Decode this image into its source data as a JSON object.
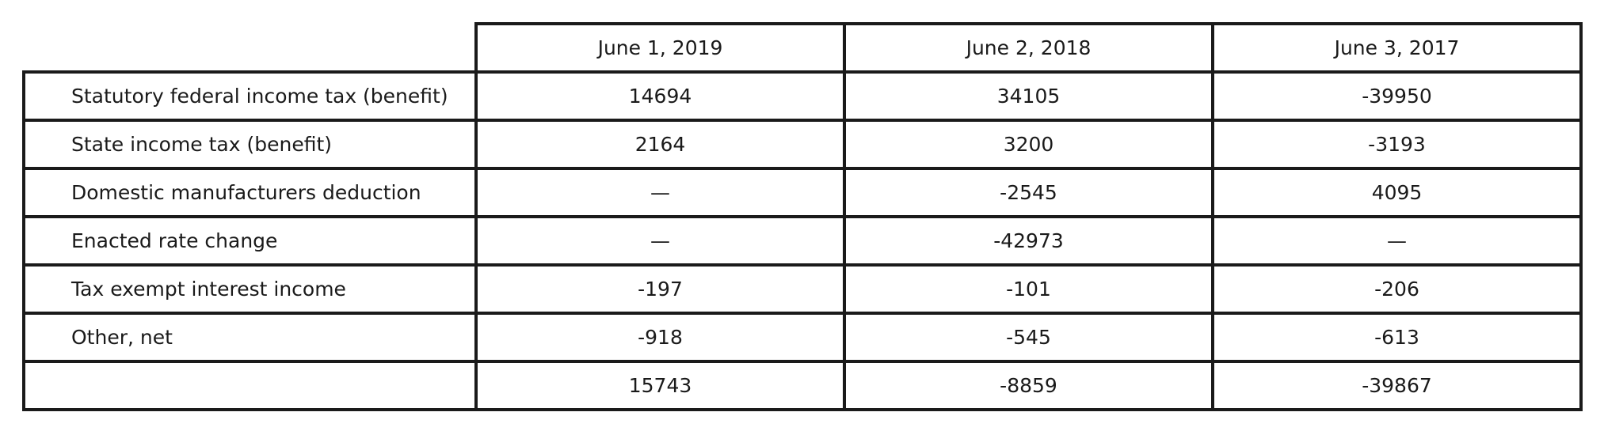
{
  "table": {
    "headers": [
      "June 1, 2019",
      "June 2, 2018",
      "June 3, 2017"
    ],
    "rows": [
      {
        "label": "Statutory federal income tax (benefit)",
        "values": [
          "14694",
          "34105",
          "-39950"
        ]
      },
      {
        "label": "State income tax (benefit)",
        "values": [
          "2164",
          "3200",
          "-3193"
        ]
      },
      {
        "label": "Domestic manufacturers deduction",
        "values": [
          "—",
          "-2545",
          "4095"
        ]
      },
      {
        "label": "Enacted rate change",
        "values": [
          "—",
          "-42973",
          "—"
        ]
      },
      {
        "label": "Tax exempt interest income",
        "values": [
          "-197",
          "-101",
          "-206"
        ]
      },
      {
        "label": "Other, net",
        "values": [
          "-918",
          "-545",
          "-613"
        ]
      },
      {
        "label": "",
        "values": [
          "15743",
          "-8859",
          "-39867"
        ]
      }
    ]
  }
}
